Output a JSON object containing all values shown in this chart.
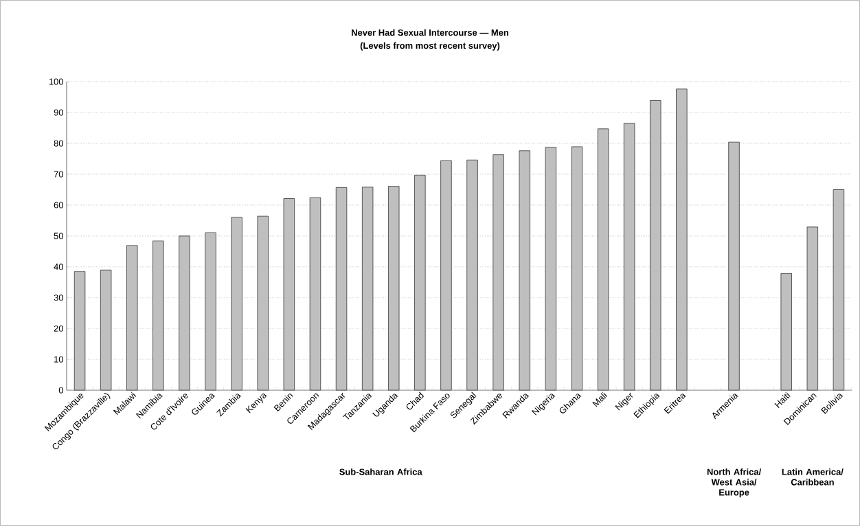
{
  "chart_data": {
    "type": "bar",
    "title": "Never Had Sexual Intercourse — Men",
    "subtitle": "(Levels from most recent survey)",
    "categories": [
      "Mozambique",
      "Congo (Brazzaville)",
      "Malawi",
      "Namibia",
      "Cote d'Ivoire",
      "Guinea",
      "Zambia",
      "Kenya",
      "Benin",
      "Cameroon",
      "Madagascar",
      "Tanzania",
      "Uganda",
      "Chad",
      "Burkina Faso",
      "Senegal",
      "Zimbabwe",
      "Rwanda",
      "Nigeria",
      "Ghana",
      "Mali",
      "Niger",
      "Ethiopia",
      "Eritrea",
      null,
      "Armenia",
      null,
      "Haiti",
      "Dominican",
      "Bolivia"
    ],
    "values": [
      38.5,
      38.9,
      46.9,
      48.4,
      50.0,
      51.0,
      56.0,
      56.4,
      62.1,
      62.4,
      65.7,
      65.8,
      66.1,
      69.7,
      74.4,
      74.6,
      76.3,
      77.6,
      78.7,
      78.9,
      84.7,
      86.5,
      93.9,
      97.6,
      null,
      80.4,
      null,
      37.9,
      52.9,
      65.0
    ],
    "color": "#bfbfbf",
    "ylim": [
      0,
      100
    ],
    "yticks": [
      0,
      10,
      20,
      30,
      40,
      50,
      60,
      70,
      80,
      90,
      100
    ],
    "grid": "y",
    "annotations": [
      "Sub-Saharan Africa",
      "North Africa/ West Asia/ Europe",
      "Latin America/ Caribbean"
    ]
  }
}
